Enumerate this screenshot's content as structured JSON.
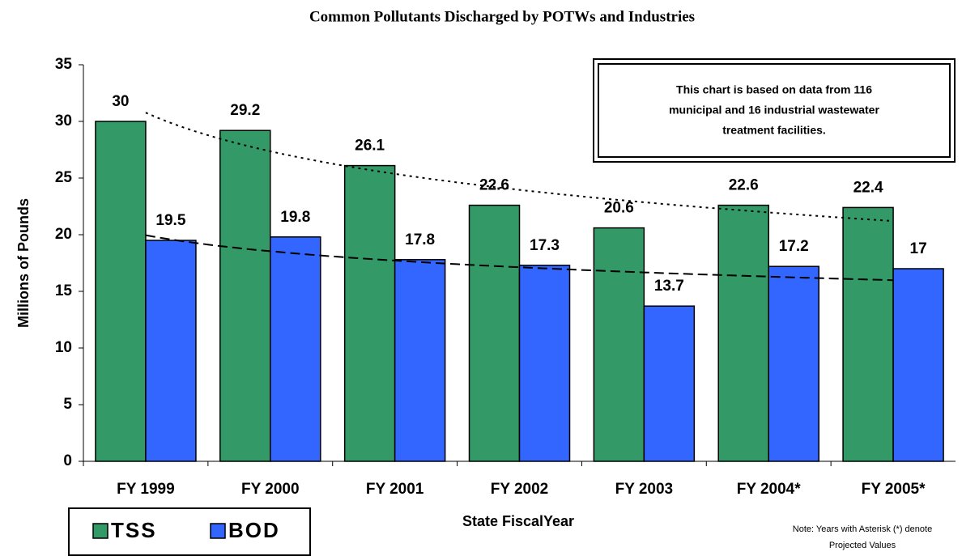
{
  "chart_data": {
    "type": "bar",
    "title": "Common Pollutants Discharged by POTWs and Industries",
    "y_label": "Millions of Pounds",
    "x_label": "State FiscalYear",
    "annotation": [
      "This chart  is based on data from 116",
      "municipal and 16 industrial wastewater",
      "treatment facilities."
    ],
    "note": [
      "Note:  Years with Asterisk (*) denote",
      "Projected Values"
    ],
    "categories": [
      "FY 1999",
      "FY 2000",
      "FY 2001",
      "FY 2002",
      "FY 2003",
      "FY 2004*",
      "FY 2005*"
    ],
    "series": [
      {
        "name": "TSS",
        "color": "#339966",
        "values": [
          30,
          29.2,
          26.1,
          22.6,
          20.6,
          22.6,
          22.4
        ]
      },
      {
        "name": "BOD",
        "color": "#3366ff",
        "values": [
          19.5,
          19.8,
          17.8,
          17.3,
          13.7,
          17.2,
          17
        ]
      }
    ],
    "ylim": [
      0,
      35
    ],
    "yticks": [
      0,
      5,
      10,
      15,
      20,
      25,
      30,
      35
    ],
    "legend": "bottom-left"
  }
}
